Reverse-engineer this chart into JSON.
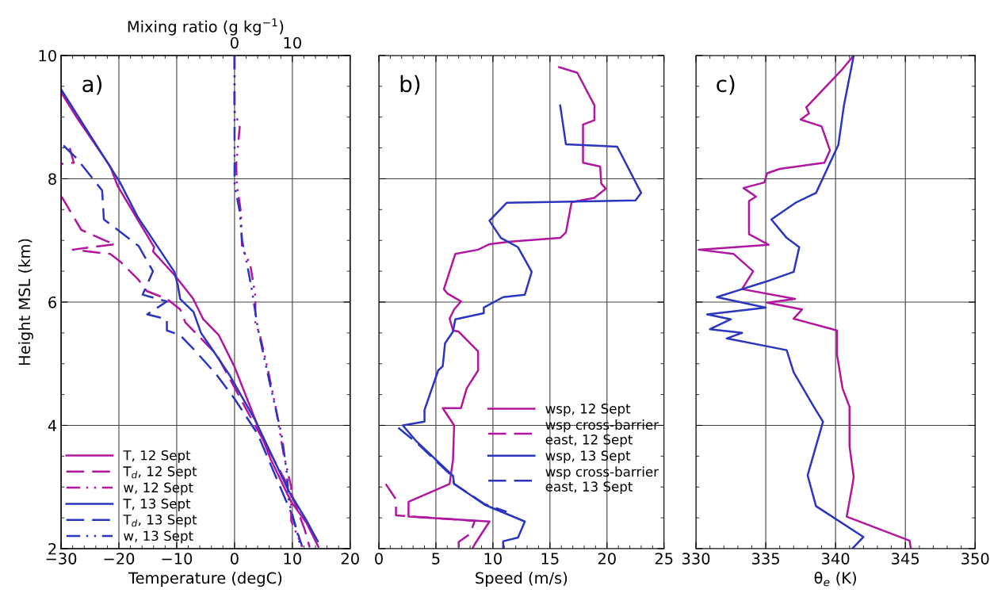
{
  "chart_data": [
    {
      "type": "line",
      "title": "a)",
      "xlabel": "Temperature (degC)",
      "ylabel": "Height MSL (km)",
      "x2label": "Mixing ratio (g kg$^{−1}$)",
      "xlim": [
        -30,
        20
      ],
      "xticks": [
        -30,
        -20,
        -10,
        0,
        10,
        20
      ],
      "x2lim": [
        -30,
        20
      ],
      "x2ticks": [
        0,
        10
      ],
      "ylim": [
        2,
        10
      ],
      "yticks": [
        2,
        4,
        6,
        8,
        10
      ],
      "grid": true,
      "legend": "bottom left",
      "tick_labels": "xy",
      "series": [
        {
          "name": "T, 12 Sept",
          "color": "#b0179e",
          "line_style": "solid",
          "x": [
            -30,
            -27.4,
            -21.5,
            -20.2,
            -13.9,
            -14.1,
            -10.4,
            -7.2,
            -5.4,
            -2.7,
            0,
            3.1,
            6.3,
            9.8,
            12.5,
            14.5
          ],
          "values": [
            9.4,
            9.01,
            8.2,
            7.88,
            6.89,
            6.82,
            6.44,
            6.06,
            5.72,
            5.46,
            4.95,
            4.21,
            3.44,
            2.76,
            2.41,
            2.03
          ]
        },
        {
          "name": "T$_{d}$, 12 Sept",
          "color": "#b0179e",
          "line_style": "dashed",
          "x": [
            -28.5,
            -27.8,
            -30,
            null,
            -29.9,
            -26.5,
            -21.9,
            -20.6,
            -28,
            -21.5,
            -19.8,
            -16.6,
            -15.2,
            -11.7,
            -9.4,
            -8.5,
            -3.1,
            1.8,
            9.4,
            12.1,
            13.0
          ],
          "values": [
            8.5,
            8.26,
            8.24,
            null,
            7.71,
            7.17,
            6.98,
            6.94,
            6.85,
            6.78,
            6.66,
            6.36,
            6.18,
            6.05,
            5.88,
            5.67,
            5.15,
            4.3,
            3.0,
            2.32,
            2.02
          ]
        },
        {
          "name": "w, 12 Sept",
          "color": "#b0179e",
          "line_style": "dashdot",
          "axis": "x2",
          "x": [
            0,
            0,
            0.9,
            0.3,
            0.4,
            1.1,
            1.3,
            2.7,
            3.6,
            3.6,
            4.4,
            5.8,
            7.1,
            8.5,
            9.8,
            9.8,
            11.7
          ],
          "values": [
            10,
            9.1,
            8.84,
            8.24,
            7.9,
            7.47,
            6.87,
            6.62,
            6.1,
            5.67,
            5.46,
            4.89,
            4.3,
            3.53,
            3.0,
            2.45,
            2.03
          ]
        },
        {
          "name": "T, 13 Sept",
          "color": "#2b35c0",
          "line_style": "solid",
          "x": [
            -30,
            -19.8,
            -16.8,
            -10.4,
            -9.8,
            -9.4,
            -7.1,
            -5.8,
            -3.6,
            -0.9,
            3.6,
            9.4,
            12.5,
            14.4
          ],
          "values": [
            9.45,
            7.94,
            7.39,
            6.49,
            6.27,
            6.05,
            5.84,
            5.5,
            5.2,
            4.82,
            4.08,
            2.93,
            2.45,
            2.12
          ]
        },
        {
          "name": "T$_{d}$, 13 Sept",
          "color": "#2b35c0",
          "line_style": "dashed",
          "x": [
            -29.6,
            -27.3,
            -22.9,
            -22.6,
            -20.2,
            -16.6,
            -14.1,
            -15.9,
            -11.7,
            -15.1,
            -11.7,
            -11.7,
            -9.4,
            -7.1,
            -3.1,
            0,
            4.0,
            9.8,
            11.7
          ],
          "values": [
            8.54,
            8.33,
            7.81,
            7.34,
            7.17,
            6.91,
            6.5,
            6.12,
            6.01,
            5.8,
            5.72,
            5.54,
            5.46,
            5.24,
            4.82,
            4.43,
            3.86,
            2.58,
            2.03
          ]
        },
        {
          "name": "w, 13 Sept",
          "color": "#2b35c0",
          "line_style": "dashdot",
          "axis": "x2",
          "x": [
            0,
            0,
            0,
            0.9,
            1.3,
            2.2,
            2.8,
            3.1,
            4.0,
            5.0,
            6.3,
            8.1,
            9.0,
            9.4,
            10.8,
            11.4
          ],
          "values": [
            10,
            8.5,
            7.9,
            7.47,
            7.0,
            6.6,
            6.3,
            6.14,
            5.59,
            5.15,
            4.6,
            3.87,
            3.27,
            2.76,
            2.28,
            2.03
          ]
        }
      ]
    },
    {
      "type": "line",
      "title": "b)",
      "xlabel": "Speed (m/s)",
      "xlim": [
        0,
        25
      ],
      "xticks": [
        0,
        5,
        10,
        15,
        20,
        25
      ],
      "ylim": [
        2,
        10
      ],
      "yticks": [
        2,
        4,
        6,
        8,
        10
      ],
      "grid": true,
      "legend": "bottom right",
      "tick_labels": "x",
      "series": [
        {
          "name": "wsp, 12 Sept",
          "color": "#b0179e",
          "line_style": "solid",
          "x": [
            15.8,
            17.4,
            18.9,
            18.9,
            17.9,
            17.9,
            19.4,
            19.5,
            19.9,
            18.9,
            16.9,
            16.4,
            15.9,
            11.5,
            9.7,
            8.7,
            6.7,
            5.7,
            6.0,
            7.2,
            6.6,
            6.2,
            6.5,
            7.0,
            8.7,
            8.7,
            7.7,
            7.2,
            5.6,
            6.6,
            6.5,
            6.2,
            2.6,
            2.6,
            9.7,
            8.4,
            8.2
          ],
          "values": [
            9.81,
            9.72,
            9.19,
            8.95,
            8.88,
            8.26,
            8.2,
            7.92,
            7.84,
            7.69,
            7.62,
            7.13,
            7.04,
            6.98,
            6.94,
            6.85,
            6.78,
            6.21,
            6.14,
            6.01,
            5.88,
            5.73,
            5.54,
            5.52,
            5.2,
            4.89,
            4.6,
            4.28,
            4.28,
            4.0,
            3.44,
            3.05,
            2.76,
            2.52,
            2.44,
            2.07,
            2.0
          ]
        },
        {
          "name": "wsp cross-barrier\neast, 12 Sept",
          "color": "#b0179e",
          "line_style": "dashed",
          "x": [
            0.6,
            1.5,
            1.5,
            8.4,
            8.0,
            7.0,
            7.0
          ],
          "values": [
            3.05,
            2.8,
            2.54,
            2.45,
            2.24,
            2.11,
            2.0
          ]
        },
        {
          "name": "wsp, 13 Sept",
          "color": "#2b35c0",
          "line_style": "solid",
          "x": [
            15.9,
            16.4,
            20.9,
            23.0,
            22.5,
            11.2,
            9.7,
            10.7,
            12.2,
            13.4,
            12.8,
            10.9,
            9.2,
            9.2,
            6.7,
            6.5,
            5.8,
            5.6,
            5.2,
            4.0,
            4.0,
            2.1,
            3.3,
            6.5,
            6.6,
            9.3,
            12.8,
            12.2,
            10.9,
            10.9
          ],
          "values": [
            9.19,
            8.56,
            8.52,
            7.77,
            7.65,
            7.61,
            7.32,
            7.04,
            6.89,
            6.49,
            6.12,
            6.08,
            5.91,
            5.82,
            5.72,
            5.52,
            5.33,
            4.96,
            4.89,
            4.25,
            4.06,
            4.0,
            3.74,
            3.18,
            3.05,
            2.71,
            2.44,
            2.18,
            2.12,
            2.0
          ]
        },
        {
          "name": "wsp cross-barrier\neast, 13 Sept",
          "color": "#2b35c0",
          "line_style": "dashed",
          "x": [
            1.7,
            3.3,
            6.4,
            6.6,
            9.3,
            11.2
          ],
          "values": [
            3.96,
            3.72,
            3.18,
            3.05,
            2.72,
            2.6
          ]
        }
      ]
    },
    {
      "type": "line",
      "title": "c)",
      "xlabel": "θ$_{e}$ (K)",
      "xlim": [
        330,
        350
      ],
      "xticks": [
        330,
        335,
        340,
        345,
        350
      ],
      "ylim": [
        2,
        10
      ],
      "yticks": [
        2,
        4,
        6,
        8,
        10
      ],
      "grid": true,
      "tick_labels": "x",
      "series": [
        {
          "color": "#b0179e",
          "line_style": "solid",
          "x": [
            341.3,
            340.5,
            337.9,
            338.1,
            337.5,
            339.0,
            339.6,
            339.2,
            336.0,
            335.1,
            334.9,
            333.4,
            334.3,
            333.8,
            333.8,
            335.2,
            330.2,
            332.7,
            334.1,
            333.3,
            337.1,
            335.1,
            337.6,
            337.0,
            340.1,
            340.1,
            340.5,
            341.0,
            341.0,
            341.3,
            341.2,
            340.8,
            345.3,
            345.4
          ],
          "values": [
            10,
            9.78,
            9.16,
            9.06,
            8.96,
            8.85,
            8.46,
            8.26,
            8.16,
            8.09,
            7.94,
            7.85,
            7.71,
            7.64,
            7.1,
            6.93,
            6.85,
            6.78,
            6.5,
            6.21,
            6.05,
            5.99,
            5.88,
            5.73,
            5.54,
            5.15,
            4.6,
            4.3,
            3.66,
            3.16,
            3.02,
            2.52,
            2.13,
            2.0
          ]
        },
        {
          "color": "#2b35c0",
          "line_style": "solid",
          "x": [
            341.3,
            340.6,
            340.2,
            338.6,
            337.2,
            335.4,
            336.5,
            337.4,
            337.0,
            335.0,
            333.3,
            331.5,
            335.0,
            330.8,
            332.5,
            331.0,
            333.3,
            332.2,
            336.5,
            337.0,
            338.5,
            339.1,
            338.0,
            338.6,
            342.0,
            341.2
          ],
          "values": [
            10,
            9.19,
            8.55,
            7.77,
            7.62,
            7.34,
            7.04,
            6.89,
            6.49,
            6.33,
            6.21,
            6.08,
            5.91,
            5.8,
            5.72,
            5.56,
            5.5,
            5.41,
            5.22,
            4.86,
            4.28,
            4.06,
            3.19,
            2.69,
            2.19,
            2.0
          ]
        }
      ]
    }
  ]
}
